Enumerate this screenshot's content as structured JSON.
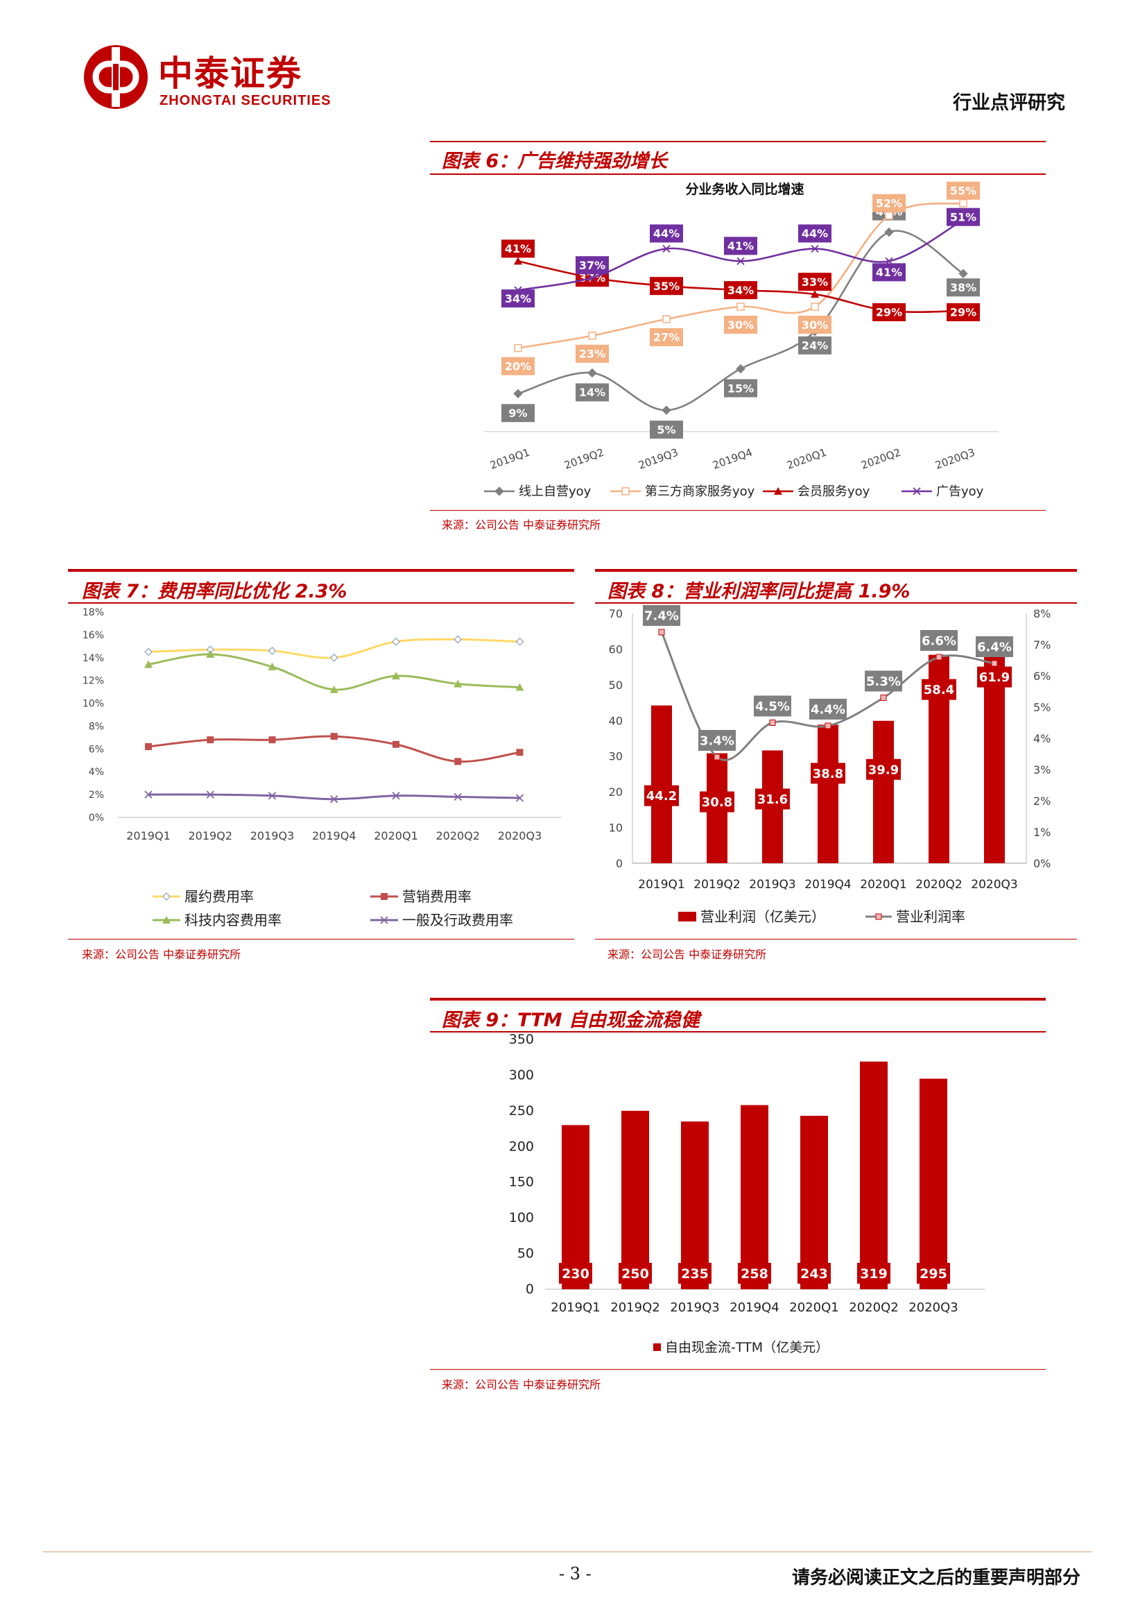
{
  "header": {
    "brand_cn": "中泰证券",
    "brand_en": "ZHONGTAI SECURITIES",
    "report_type": "行业点评研究"
  },
  "colors": {
    "brand_red": "#c00000",
    "series_online": "#7f7f7f",
    "series_third_party": "#f4b183",
    "series_member": "#c00000",
    "series_ads": "#7030a0",
    "fulfillment": "#ffd966",
    "marketing": "#c0504d",
    "tech": "#9bbb59",
    "ga": "#8064a2"
  },
  "figures": {
    "fig6": {
      "title": "图表 6：广告维持强劲增长",
      "source": "来源：公司公告 中泰证券研究所"
    },
    "fig7": {
      "title": "图表 7：费用率同比优化 2.3%",
      "source": "来源：公司公告 中泰证券研究所"
    },
    "fig8": {
      "title": "图表 8：营业利润率同比提高 1.9%",
      "source": "来源：公司公告 中泰证券研究所"
    },
    "fig9": {
      "title": "图表 9：TTM 自由现金流稳健",
      "source": "来源：公司公告 中泰证券研究所"
    }
  },
  "chart_data": [
    {
      "id": "fig6",
      "type": "line",
      "title": "分业务收入同比增速",
      "categories": [
        "2019Q1",
        "2019Q2",
        "2019Q3",
        "2019Q4",
        "2020Q1",
        "2020Q2",
        "2020Q3"
      ],
      "ylim": [
        0,
        60
      ],
      "series": [
        {
          "name": "线上自营yoy",
          "values": [
            9,
            14,
            5,
            15,
            24,
            48,
            38
          ],
          "labels": [
            "9%",
            "14%",
            "5%",
            "15%",
            "24%",
            "48%",
            "38%"
          ]
        },
        {
          "name": "第三方商家服务yoy",
          "values": [
            20,
            23,
            27,
            30,
            30,
            52,
            55
          ],
          "labels": [
            "20%",
            "23%",
            "27%",
            "30%",
            "30%",
            "52%",
            "55%"
          ]
        },
        {
          "name": "会员服务yoy",
          "values": [
            41,
            37,
            35,
            34,
            33,
            29,
            29
          ],
          "labels": [
            "41%",
            "37%",
            "35%",
            "34%",
            "33%",
            "29%",
            "29%"
          ]
        },
        {
          "name": "广告yoy",
          "values": [
            34,
            37,
            44,
            41,
            44,
            41,
            51
          ],
          "labels": [
            "34%",
            "37%",
            "44%",
            "41%",
            "44%",
            "41%",
            "51%"
          ]
        }
      ],
      "legend": "bottom"
    },
    {
      "id": "fig7",
      "type": "line",
      "categories": [
        "2019Q1",
        "2019Q2",
        "2019Q3",
        "2019Q4",
        "2020Q1",
        "2020Q2",
        "2020Q3"
      ],
      "yticks": [
        "0%",
        "2%",
        "4%",
        "6%",
        "8%",
        "10%",
        "12%",
        "14%",
        "16%",
        "18%"
      ],
      "ylim": [
        0,
        18
      ],
      "series": [
        {
          "name": "履约费用率",
          "values": [
            14.5,
            14.7,
            14.6,
            14.0,
            15.4,
            15.6,
            15.4
          ]
        },
        {
          "name": "营销费用率",
          "values": [
            6.2,
            6.8,
            6.8,
            7.1,
            6.4,
            4.9,
            5.7
          ]
        },
        {
          "name": "科技内容费用率",
          "values": [
            13.4,
            14.3,
            13.2,
            11.2,
            12.4,
            11.7,
            11.4
          ]
        },
        {
          "name": "一般及行政费用率",
          "values": [
            2.0,
            2.0,
            1.9,
            1.6,
            1.9,
            1.8,
            1.7
          ]
        }
      ],
      "legend": "bottom"
    },
    {
      "id": "fig8",
      "type": "bar",
      "categories": [
        "2019Q1",
        "2019Q2",
        "2019Q3",
        "2019Q4",
        "2020Q1",
        "2020Q2",
        "2020Q3"
      ],
      "ylim": [
        0,
        70
      ],
      "y2lim": [
        0,
        8
      ],
      "yticks": [
        "0",
        "10",
        "20",
        "30",
        "40",
        "50",
        "60",
        "70"
      ],
      "y2ticks": [
        "0%",
        "1%",
        "2%",
        "3%",
        "4%",
        "5%",
        "6%",
        "7%",
        "8%"
      ],
      "series": [
        {
          "name": "营业利润（亿美元）",
          "type": "bar",
          "values": [
            44.2,
            30.8,
            31.6,
            38.8,
            39.9,
            58.4,
            61.9
          ],
          "labels": [
            "44.2",
            "30.8",
            "31.6",
            "38.8",
            "39.9",
            "58.4",
            "61.9"
          ]
        },
        {
          "name": "营业利润率",
          "type": "line",
          "axis": "right",
          "values": [
            7.4,
            3.4,
            4.5,
            4.4,
            5.3,
            6.6,
            6.4
          ],
          "labels": [
            "7.4%",
            "3.4%",
            "4.5%",
            "4.4%",
            "5.3%",
            "6.6%",
            "6.4%"
          ]
        }
      ],
      "legend": "bottom"
    },
    {
      "id": "fig9",
      "type": "bar",
      "categories": [
        "2019Q1",
        "2019Q2",
        "2019Q3",
        "2019Q4",
        "2020Q1",
        "2020Q2",
        "2020Q3"
      ],
      "ylim": [
        0,
        350
      ],
      "yticks": [
        "0",
        "50",
        "100",
        "150",
        "200",
        "250",
        "300",
        "350"
      ],
      "series": [
        {
          "name": "自由现金流-TTM（亿美元）",
          "values": [
            230,
            250,
            235,
            258,
            243,
            319,
            295
          ],
          "labels": [
            "230",
            "250",
            "235",
            "258",
            "243",
            "319",
            "295"
          ]
        }
      ],
      "legend": "bottom"
    }
  ],
  "footer": {
    "page": "- 3 -",
    "note": "请务必阅读正文之后的重要声明部分"
  }
}
